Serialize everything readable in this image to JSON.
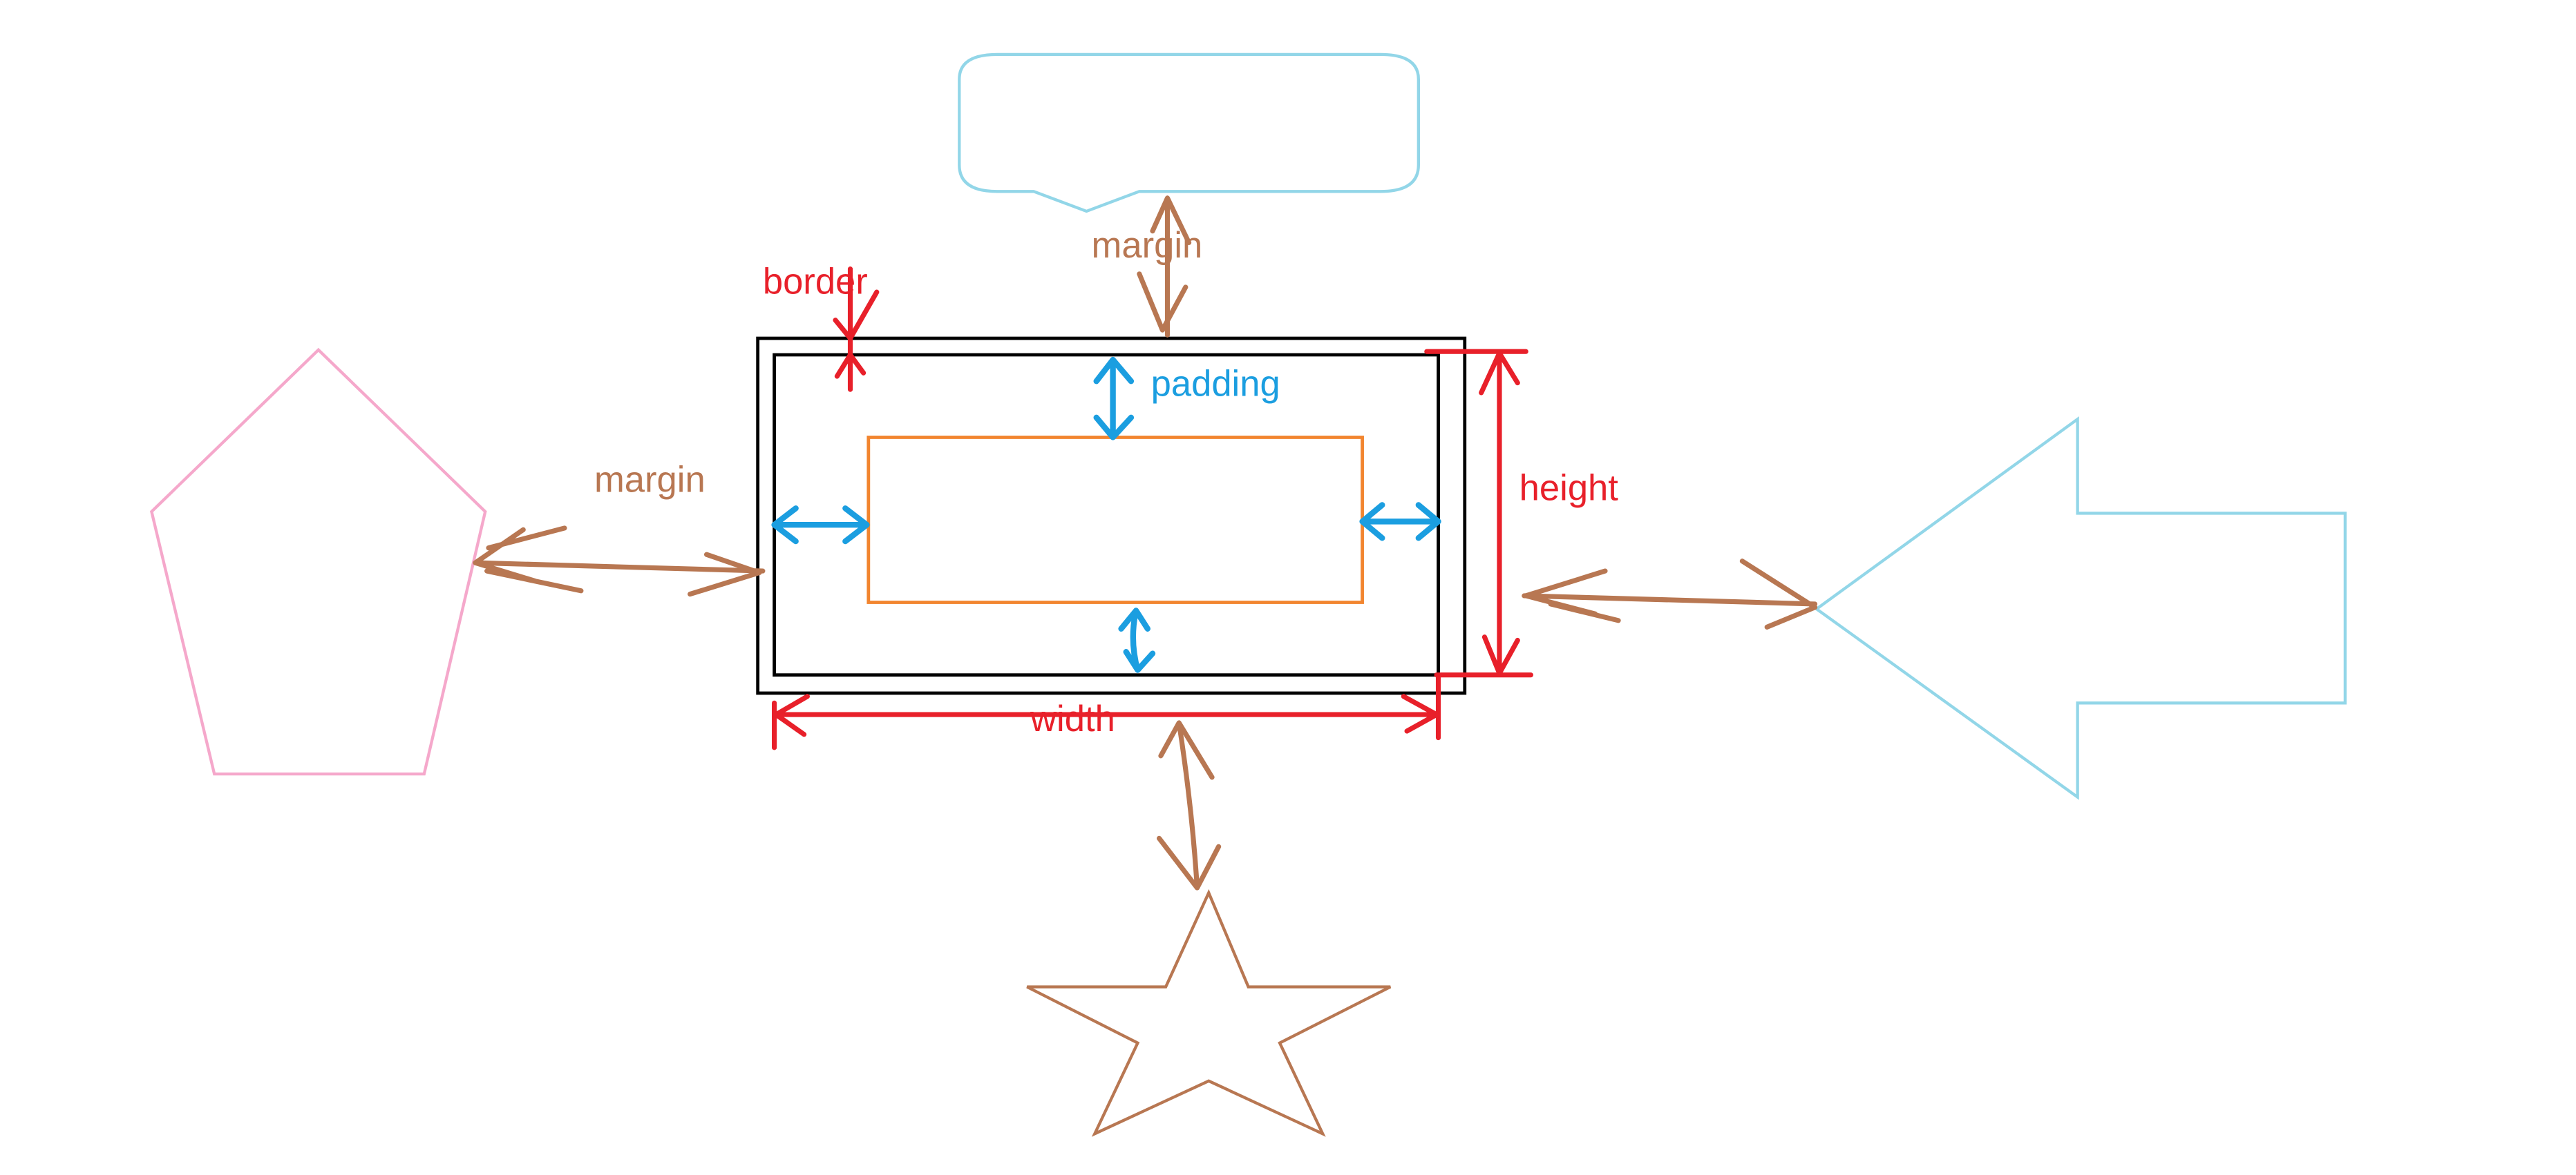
{
  "labels": {
    "margin_top": "margin",
    "margin_left": "margin",
    "border": "border",
    "padding": "padding",
    "height": "height",
    "width": "width"
  },
  "colors": {
    "background": "#ffffff",
    "margin": "#b87752",
    "border": "#e8202a",
    "padding": "#1b9ee0",
    "box_outline": "#000000",
    "content_box": "#f2852f",
    "speech_bubble": "#92d6e8",
    "pentagon": "#f5a8cb",
    "block_arrow": "#92d6e8",
    "star": "#b87752"
  },
  "shapes": {
    "top": "speech-bubble",
    "left": "pentagon",
    "right": "block-arrow-left",
    "bottom": "star",
    "center": "box-model"
  }
}
